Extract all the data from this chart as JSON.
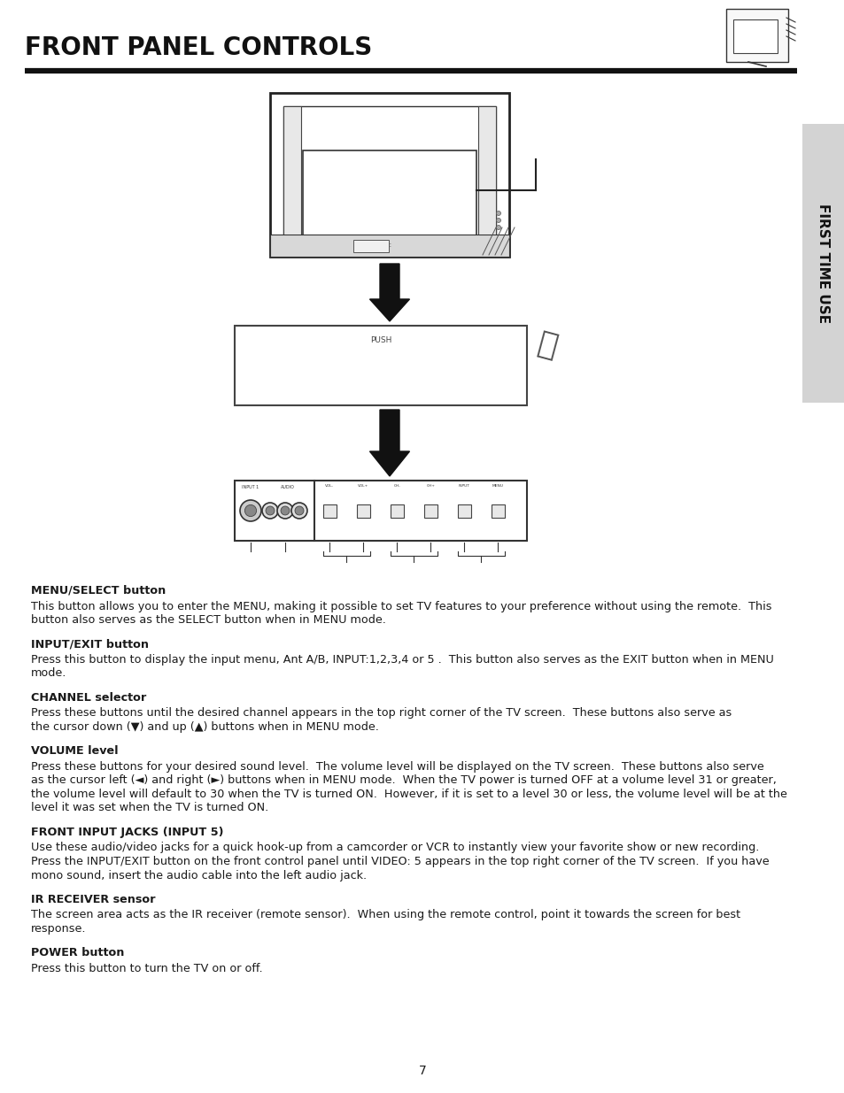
{
  "title": "FRONT PANEL CONTROLS",
  "sidebar_text": "FIRST TIME USE",
  "page_number": "7",
  "sections": [
    {
      "heading": "MENU/SELECT button",
      "body": "This button allows you to enter the MENU, making it possible to set TV features to your preference without using the remote.  This\nbutton also serves as the SELECT button when in MENU mode."
    },
    {
      "heading": "INPUT/EXIT button",
      "body": "Press this button to display the input menu, Ant A/B, INPUT:1,2,3,4 or 5 .  This button also serves as the EXIT button when in MENU\nmode."
    },
    {
      "heading": "CHANNEL selector",
      "body": "Press these buttons until the desired channel appears in the top right corner of the TV screen.  These buttons also serve as\nthe cursor down (▼) and up (▲) buttons when in MENU mode."
    },
    {
      "heading": "VOLUME level",
      "body": "Press these buttons for your desired sound level.  The volume level will be displayed on the TV screen.  These buttons also serve\nas the cursor left (◄) and right (►) buttons when in MENU mode.  When the TV power is turned OFF at a volume level 31 or greater,\nthe volume level will default to 30 when the TV is turned ON.  However, if it is set to a level 30 or less, the volume level will be at the\nlevel it was set when the TV is turned ON."
    },
    {
      "heading": "FRONT INPUT JACKS (INPUT 5)",
      "body": "Use these audio/video jacks for a quick hook-up from a camcorder or VCR to instantly view your favorite show or new recording.\nPress the INPUT/EXIT button on the front control panel until VIDEO: 5 appears in the top right corner of the TV screen.  If you have\nmono sound, insert the audio cable into the left audio jack."
    },
    {
      "heading": "IR RECEIVER sensor",
      "body": "The screen area acts as the IR receiver (remote sensor).  When using the remote control, point it towards the screen for best\nresponse."
    },
    {
      "heading": "POWER button",
      "body": "Press this button to turn the TV on or off."
    }
  ],
  "bg_color": "#ffffff",
  "text_color": "#1a1a1a",
  "sidebar_bg": "#d3d3d3",
  "sidebar_text_color": "#111111",
  "title_color": "#111111",
  "line_color": "#111111"
}
